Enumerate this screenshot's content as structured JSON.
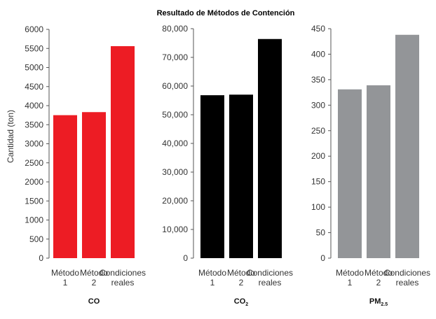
{
  "figure": {
    "title": "Resultado de Métodos de Contención",
    "ylabel": "Cantidad (ton)"
  },
  "chart_data": [
    {
      "type": "bar",
      "title": "",
      "xlabel": "CO",
      "xlabel_main": "CO",
      "xlabel_sub": "",
      "ylabel": "Cantidad (ton)",
      "categories": [
        [
          "Método",
          "1"
        ],
        [
          "Método",
          "2"
        ],
        [
          "Condiciones",
          "reales"
        ]
      ],
      "values": [
        3750,
        3830,
        5560
      ],
      "ylim": [
        0,
        6000
      ],
      "yticks": [
        0,
        500,
        1000,
        1500,
        2000,
        2500,
        3000,
        3500,
        4000,
        4500,
        5000,
        5500,
        6000
      ],
      "ytick_labels": [
        "0",
        "500",
        "1000",
        "1500",
        "2000",
        "2500",
        "3000",
        "3500",
        "4000",
        "4500",
        "5000",
        "5500",
        "6000"
      ],
      "color": "#ed1c24",
      "grid": false
    },
    {
      "type": "bar",
      "title": "",
      "xlabel": "CO2",
      "xlabel_main": "CO",
      "xlabel_sub": "2",
      "ylabel": "",
      "categories": [
        [
          "Método",
          "1"
        ],
        [
          "Método",
          "2"
        ],
        [
          "Condiciones",
          "reales"
        ]
      ],
      "values": [
        56800,
        57000,
        76400
      ],
      "ylim": [
        0,
        80000
      ],
      "yticks": [
        0,
        10000,
        20000,
        30000,
        40000,
        50000,
        60000,
        70000,
        80000
      ],
      "ytick_labels": [
        "0",
        "10,000",
        "20,000",
        "30,000",
        "40,000",
        "50,000",
        "60,000",
        "70,000",
        "80,000"
      ],
      "color": "#000000",
      "grid": false
    },
    {
      "type": "bar",
      "title": "",
      "xlabel": "PM2.5",
      "xlabel_main": "PM",
      "xlabel_sub": "2.5",
      "ylabel": "",
      "categories": [
        [
          "Método",
          "1"
        ],
        [
          "Método",
          "2"
        ],
        [
          "Condiciones",
          "reales"
        ]
      ],
      "values": [
        331,
        339,
        438
      ],
      "ylim": [
        0,
        450
      ],
      "yticks": [
        0,
        50,
        100,
        150,
        200,
        250,
        300,
        350,
        400,
        450
      ],
      "ytick_labels": [
        "0",
        "50",
        "100",
        "150",
        "200",
        "250",
        "300",
        "350",
        "400",
        "450"
      ],
      "color": "#939598",
      "grid": false
    }
  ]
}
